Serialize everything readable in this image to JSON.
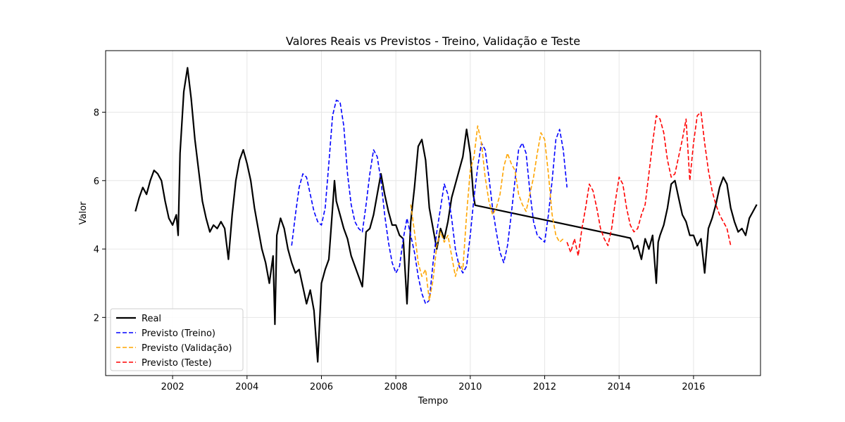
{
  "chart_data": {
    "type": "line",
    "title": "Valores Reais vs Previstos - Treino, Validação e Teste",
    "xlabel": "Tempo",
    "ylabel": "Valor",
    "xlim": [
      2000.2,
      2017.8
    ],
    "ylim": [
      0.3,
      9.8
    ],
    "x_ticks": [
      2002,
      2004,
      2006,
      2008,
      2010,
      2012,
      2014,
      2016
    ],
    "x_tick_labels": [
      "2002",
      "2004",
      "2006",
      "2008",
      "2010",
      "2012",
      "2014",
      "2016"
    ],
    "y_ticks": [
      2,
      4,
      6,
      8
    ],
    "y_tick_labels": [
      "2",
      "4",
      "6",
      "8"
    ],
    "grid": true,
    "legend_position": "lower-left",
    "series": [
      {
        "name": "Real",
        "color": "#000000",
        "style": "solid",
        "points": [
          [
            2001.0,
            5.1
          ],
          [
            2001.1,
            5.5
          ],
          [
            2001.2,
            5.8
          ],
          [
            2001.3,
            5.6
          ],
          [
            2001.4,
            6.0
          ],
          [
            2001.5,
            6.3
          ],
          [
            2001.6,
            6.2
          ],
          [
            2001.7,
            6.0
          ],
          [
            2001.8,
            5.4
          ],
          [
            2001.9,
            4.9
          ],
          [
            2002.0,
            4.7
          ],
          [
            2002.1,
            5.0
          ],
          [
            2002.15,
            4.4
          ],
          [
            2002.2,
            6.8
          ],
          [
            2002.3,
            8.6
          ],
          [
            2002.4,
            9.3
          ],
          [
            2002.5,
            8.4
          ],
          [
            2002.6,
            7.2
          ],
          [
            2002.7,
            6.3
          ],
          [
            2002.8,
            5.4
          ],
          [
            2002.9,
            4.9
          ],
          [
            2003.0,
            4.5
          ],
          [
            2003.1,
            4.7
          ],
          [
            2003.2,
            4.6
          ],
          [
            2003.3,
            4.8
          ],
          [
            2003.4,
            4.6
          ],
          [
            2003.5,
            3.7
          ],
          [
            2003.6,
            5.0
          ],
          [
            2003.7,
            6.0
          ],
          [
            2003.8,
            6.6
          ],
          [
            2003.9,
            6.9
          ],
          [
            2004.0,
            6.5
          ],
          [
            2004.1,
            6.0
          ],
          [
            2004.2,
            5.2
          ],
          [
            2004.3,
            4.6
          ],
          [
            2004.4,
            4.0
          ],
          [
            2004.5,
            3.6
          ],
          [
            2004.6,
            3.0
          ],
          [
            2004.7,
            3.8
          ],
          [
            2004.75,
            1.8
          ],
          [
            2004.8,
            4.4
          ],
          [
            2004.9,
            4.9
          ],
          [
            2005.0,
            4.6
          ],
          [
            2005.1,
            4.0
          ],
          [
            2005.2,
            3.6
          ],
          [
            2005.3,
            3.3
          ],
          [
            2005.4,
            3.4
          ],
          [
            2005.5,
            2.9
          ],
          [
            2005.6,
            2.4
          ],
          [
            2005.7,
            2.8
          ],
          [
            2005.8,
            2.2
          ],
          [
            2005.9,
            0.7
          ],
          [
            2006.0,
            3.0
          ],
          [
            2006.1,
            3.4
          ],
          [
            2006.2,
            3.7
          ],
          [
            2006.3,
            5.2
          ],
          [
            2006.35,
            6.0
          ],
          [
            2006.4,
            5.4
          ],
          [
            2006.5,
            5.0
          ],
          [
            2006.6,
            4.6
          ],
          [
            2006.7,
            4.3
          ],
          [
            2006.8,
            3.8
          ],
          [
            2006.9,
            3.5
          ],
          [
            2007.0,
            3.2
          ],
          [
            2007.1,
            2.9
          ],
          [
            2007.2,
            4.5
          ],
          [
            2007.3,
            4.6
          ],
          [
            2007.4,
            5.0
          ],
          [
            2007.5,
            5.6
          ],
          [
            2007.6,
            6.2
          ],
          [
            2007.7,
            5.6
          ],
          [
            2007.8,
            5.1
          ],
          [
            2007.9,
            4.7
          ],
          [
            2008.0,
            4.7
          ],
          [
            2008.1,
            4.4
          ],
          [
            2008.2,
            4.3
          ],
          [
            2008.3,
            2.4
          ],
          [
            2008.4,
            4.8
          ],
          [
            2008.5,
            5.8
          ],
          [
            2008.6,
            7.0
          ],
          [
            2008.7,
            7.2
          ],
          [
            2008.8,
            6.6
          ],
          [
            2008.9,
            5.2
          ],
          [
            2009.0,
            4.6
          ],
          [
            2009.1,
            4.0
          ],
          [
            2009.2,
            4.6
          ],
          [
            2009.3,
            4.3
          ],
          [
            2009.4,
            4.8
          ],
          [
            2009.5,
            5.5
          ],
          [
            2009.6,
            5.9
          ],
          [
            2009.7,
            6.3
          ],
          [
            2009.8,
            6.7
          ],
          [
            2009.9,
            7.5
          ],
          [
            2010.0,
            6.8
          ],
          [
            2010.08,
            5.6
          ],
          [
            2010.13,
            5.28
          ],
          [
            2014.3,
            4.32
          ],
          [
            2014.35,
            4.2
          ],
          [
            2014.4,
            4.0
          ],
          [
            2014.5,
            4.1
          ],
          [
            2014.6,
            3.7
          ],
          [
            2014.7,
            4.3
          ],
          [
            2014.8,
            4.0
          ],
          [
            2014.9,
            4.4
          ],
          [
            2015.0,
            3.0
          ],
          [
            2015.05,
            4.2
          ],
          [
            2015.1,
            4.4
          ],
          [
            2015.2,
            4.7
          ],
          [
            2015.3,
            5.2
          ],
          [
            2015.4,
            5.9
          ],
          [
            2015.5,
            6.0
          ],
          [
            2015.6,
            5.5
          ],
          [
            2015.7,
            5.0
          ],
          [
            2015.8,
            4.8
          ],
          [
            2015.9,
            4.4
          ],
          [
            2016.0,
            4.4
          ],
          [
            2016.1,
            4.1
          ],
          [
            2016.2,
            4.3
          ],
          [
            2016.3,
            3.3
          ],
          [
            2016.4,
            4.6
          ],
          [
            2016.5,
            4.9
          ],
          [
            2016.6,
            5.3
          ],
          [
            2016.7,
            5.8
          ],
          [
            2016.8,
            6.1
          ],
          [
            2016.9,
            5.9
          ],
          [
            2017.0,
            5.2
          ],
          [
            2017.1,
            4.8
          ],
          [
            2017.2,
            4.5
          ],
          [
            2017.3,
            4.6
          ],
          [
            2017.4,
            4.4
          ],
          [
            2017.5,
            4.9
          ],
          [
            2017.6,
            5.1
          ],
          [
            2017.7,
            5.3
          ]
        ]
      },
      {
        "name": "Previsto (Treino)",
        "color": "#0000ff",
        "style": "dashed",
        "points": [
          [
            2005.2,
            4.1
          ],
          [
            2005.3,
            5.0
          ],
          [
            2005.4,
            5.8
          ],
          [
            2005.5,
            6.2
          ],
          [
            2005.6,
            6.1
          ],
          [
            2005.7,
            5.6
          ],
          [
            2005.8,
            5.1
          ],
          [
            2005.9,
            4.8
          ],
          [
            2006.0,
            4.7
          ],
          [
            2006.1,
            5.2
          ],
          [
            2006.2,
            6.5
          ],
          [
            2006.3,
            7.9
          ],
          [
            2006.4,
            8.35
          ],
          [
            2006.5,
            8.3
          ],
          [
            2006.6,
            7.6
          ],
          [
            2006.7,
            6.2
          ],
          [
            2006.8,
            5.3
          ],
          [
            2006.9,
            4.8
          ],
          [
            2007.0,
            4.6
          ],
          [
            2007.1,
            4.5
          ],
          [
            2007.2,
            5.3
          ],
          [
            2007.3,
            6.2
          ],
          [
            2007.4,
            6.9
          ],
          [
            2007.5,
            6.7
          ],
          [
            2007.6,
            6.0
          ],
          [
            2007.7,
            5.0
          ],
          [
            2007.8,
            4.2
          ],
          [
            2007.9,
            3.6
          ],
          [
            2008.0,
            3.3
          ],
          [
            2008.1,
            3.5
          ],
          [
            2008.2,
            4.3
          ],
          [
            2008.3,
            4.9
          ],
          [
            2008.4,
            4.4
          ],
          [
            2008.5,
            3.9
          ],
          [
            2008.6,
            3.2
          ],
          [
            2008.7,
            2.7
          ],
          [
            2008.8,
            2.4
          ],
          [
            2008.9,
            2.5
          ],
          [
            2009.0,
            3.6
          ],
          [
            2009.1,
            4.5
          ],
          [
            2009.2,
            5.2
          ],
          [
            2009.3,
            5.9
          ],
          [
            2009.4,
            5.6
          ],
          [
            2009.5,
            4.9
          ],
          [
            2009.6,
            4.0
          ],
          [
            2009.7,
            3.5
          ],
          [
            2009.8,
            3.3
          ],
          [
            2009.9,
            3.5
          ],
          [
            2010.0,
            4.4
          ],
          [
            2010.1,
            5.5
          ],
          [
            2010.2,
            6.4
          ],
          [
            2010.3,
            7.1
          ],
          [
            2010.4,
            6.9
          ],
          [
            2010.5,
            6.1
          ],
          [
            2010.6,
            5.2
          ],
          [
            2010.7,
            4.5
          ],
          [
            2010.8,
            3.9
          ],
          [
            2010.9,
            3.6
          ],
          [
            2011.0,
            4.1
          ],
          [
            2011.1,
            5.0
          ],
          [
            2011.2,
            6.0
          ],
          [
            2011.3,
            6.9
          ],
          [
            2011.4,
            7.1
          ],
          [
            2011.5,
            6.8
          ],
          [
            2011.6,
            5.7
          ],
          [
            2011.7,
            4.8
          ],
          [
            2011.8,
            4.4
          ],
          [
            2011.9,
            4.3
          ],
          [
            2012.0,
            4.2
          ],
          [
            2012.1,
            5.0
          ],
          [
            2012.2,
            6.0
          ],
          [
            2012.3,
            7.2
          ],
          [
            2012.4,
            7.5
          ],
          [
            2012.5,
            6.9
          ],
          [
            2012.6,
            5.8
          ]
        ]
      },
      {
        "name": "Previsto (Validação)",
        "color": "#ffa500",
        "style": "dashed",
        "points": [
          [
            2008.4,
            5.3
          ],
          [
            2008.5,
            4.5
          ],
          [
            2008.6,
            3.6
          ],
          [
            2008.7,
            3.2
          ],
          [
            2008.8,
            3.4
          ],
          [
            2008.9,
            2.5
          ],
          [
            2009.0,
            3.1
          ],
          [
            2009.1,
            4.1
          ],
          [
            2009.2,
            4.5
          ],
          [
            2009.3,
            4.2
          ],
          [
            2009.4,
            4.4
          ],
          [
            2009.5,
            3.8
          ],
          [
            2009.6,
            3.2
          ],
          [
            2009.7,
            3.6
          ],
          [
            2009.8,
            3.4
          ],
          [
            2009.9,
            5.0
          ],
          [
            2010.0,
            6.3
          ],
          [
            2010.1,
            6.7
          ],
          [
            2010.2,
            7.6
          ],
          [
            2010.3,
            7.1
          ],
          [
            2010.4,
            6.1
          ],
          [
            2010.5,
            5.4
          ],
          [
            2010.6,
            5.0
          ],
          [
            2010.7,
            5.2
          ],
          [
            2010.8,
            5.6
          ],
          [
            2010.9,
            6.4
          ],
          [
            2011.0,
            6.8
          ],
          [
            2011.1,
            6.5
          ],
          [
            2011.2,
            6.3
          ],
          [
            2011.3,
            5.6
          ],
          [
            2011.4,
            5.3
          ],
          [
            2011.5,
            5.1
          ],
          [
            2011.6,
            5.6
          ],
          [
            2011.7,
            6.1
          ],
          [
            2011.8,
            6.8
          ],
          [
            2011.9,
            7.4
          ],
          [
            2012.0,
            7.2
          ],
          [
            2012.1,
            6.2
          ],
          [
            2012.2,
            5.0
          ],
          [
            2012.3,
            4.4
          ],
          [
            2012.4,
            4.2
          ],
          [
            2012.5,
            4.3
          ]
        ]
      },
      {
        "name": "Previsto (Teste)",
        "color": "#ff0000",
        "style": "dashed",
        "points": [
          [
            2012.6,
            4.2
          ],
          [
            2012.7,
            3.9
          ],
          [
            2012.8,
            4.3
          ],
          [
            2012.9,
            3.8
          ],
          [
            2013.0,
            4.6
          ],
          [
            2013.1,
            5.2
          ],
          [
            2013.2,
            5.9
          ],
          [
            2013.3,
            5.7
          ],
          [
            2013.4,
            5.2
          ],
          [
            2013.5,
            4.6
          ],
          [
            2013.6,
            4.3
          ],
          [
            2013.7,
            4.1
          ],
          [
            2013.8,
            4.6
          ],
          [
            2013.9,
            5.4
          ],
          [
            2014.0,
            6.1
          ],
          [
            2014.1,
            5.9
          ],
          [
            2014.2,
            5.2
          ],
          [
            2014.3,
            4.7
          ],
          [
            2014.4,
            4.5
          ],
          [
            2014.5,
            4.6
          ],
          [
            2014.6,
            5.0
          ],
          [
            2014.7,
            5.3
          ],
          [
            2014.8,
            6.2
          ],
          [
            2014.9,
            7.1
          ],
          [
            2015.0,
            7.9
          ],
          [
            2015.1,
            7.8
          ],
          [
            2015.2,
            7.4
          ],
          [
            2015.3,
            6.6
          ],
          [
            2015.4,
            6.1
          ],
          [
            2015.5,
            6.2
          ],
          [
            2015.6,
            6.7
          ],
          [
            2015.7,
            7.2
          ],
          [
            2015.8,
            7.8
          ],
          [
            2015.9,
            6.0
          ],
          [
            2016.0,
            7.1
          ],
          [
            2016.1,
            7.9
          ],
          [
            2016.2,
            8.0
          ],
          [
            2016.3,
            7.1
          ],
          [
            2016.4,
            6.3
          ],
          [
            2016.5,
            5.7
          ],
          [
            2016.6,
            5.3
          ],
          [
            2016.7,
            5.0
          ],
          [
            2016.8,
            4.8
          ],
          [
            2016.9,
            4.6
          ],
          [
            2017.0,
            4.1
          ]
        ]
      }
    ]
  }
}
